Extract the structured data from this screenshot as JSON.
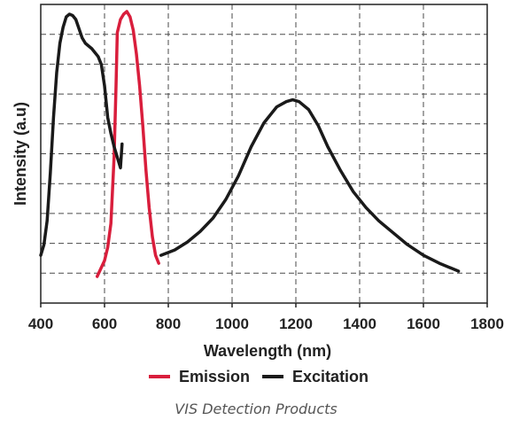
{
  "chart_data": {
    "type": "line",
    "title": "",
    "xlabel": "Wavelength (nm)",
    "ylabel": "Intensity (a.u)",
    "xlim": [
      400,
      1800
    ],
    "ylim": [
      0,
      1
    ],
    "xticks": [
      400,
      600,
      800,
      1000,
      1200,
      1400,
      1600,
      1800
    ],
    "yticks": [],
    "grid": true,
    "legend": "bottom",
    "series": [
      {
        "name": "Emission",
        "color": "#d91e3c",
        "x": [
          577,
          600,
          610,
          620,
          630,
          636,
          640,
          650,
          660,
          670,
          680,
          690,
          700,
          710,
          720,
          730,
          740,
          750,
          760,
          770
        ],
        "y": [
          0.0,
          0.06,
          0.11,
          0.2,
          0.45,
          0.72,
          0.92,
          0.97,
          0.99,
          1.0,
          0.98,
          0.93,
          0.84,
          0.72,
          0.57,
          0.4,
          0.26,
          0.15,
          0.08,
          0.05
        ]
      },
      {
        "name": "Excitation",
        "color": "#1a1a1a",
        "segments": [
          {
            "x": [
              400,
              410,
              420,
              430,
              440,
              450,
              460,
              470,
              480,
              490,
              500,
              510,
              520,
              530,
              540,
              560,
              580,
              590,
              600,
              610,
              620,
              630,
              640,
              650,
              655
            ],
            "y": [
              0.08,
              0.12,
              0.21,
              0.39,
              0.6,
              0.77,
              0.88,
              0.94,
              0.98,
              0.99,
              0.985,
              0.97,
              0.935,
              0.9,
              0.88,
              0.86,
              0.83,
              0.8,
              0.72,
              0.6,
              0.54,
              0.49,
              0.45,
              0.41,
              0.5
            ]
          },
          {
            "x": [
              777,
              820,
              860,
              900,
              940,
              980,
              1020,
              1060,
              1100,
              1140,
              1170,
              1190,
              1210,
              1240,
              1270,
              1300,
              1340,
              1380,
              1420,
              1460,
              1500,
              1550,
              1600,
              1650,
              1710
            ],
            "y": [
              0.08,
              0.1,
              0.13,
              0.17,
              0.22,
              0.29,
              0.38,
              0.49,
              0.58,
              0.64,
              0.66,
              0.667,
              0.66,
              0.63,
              0.57,
              0.49,
              0.4,
              0.32,
              0.26,
              0.21,
              0.17,
              0.12,
              0.08,
              0.05,
              0.02
            ]
          }
        ]
      }
    ],
    "caption": "VIS Detection Products"
  }
}
